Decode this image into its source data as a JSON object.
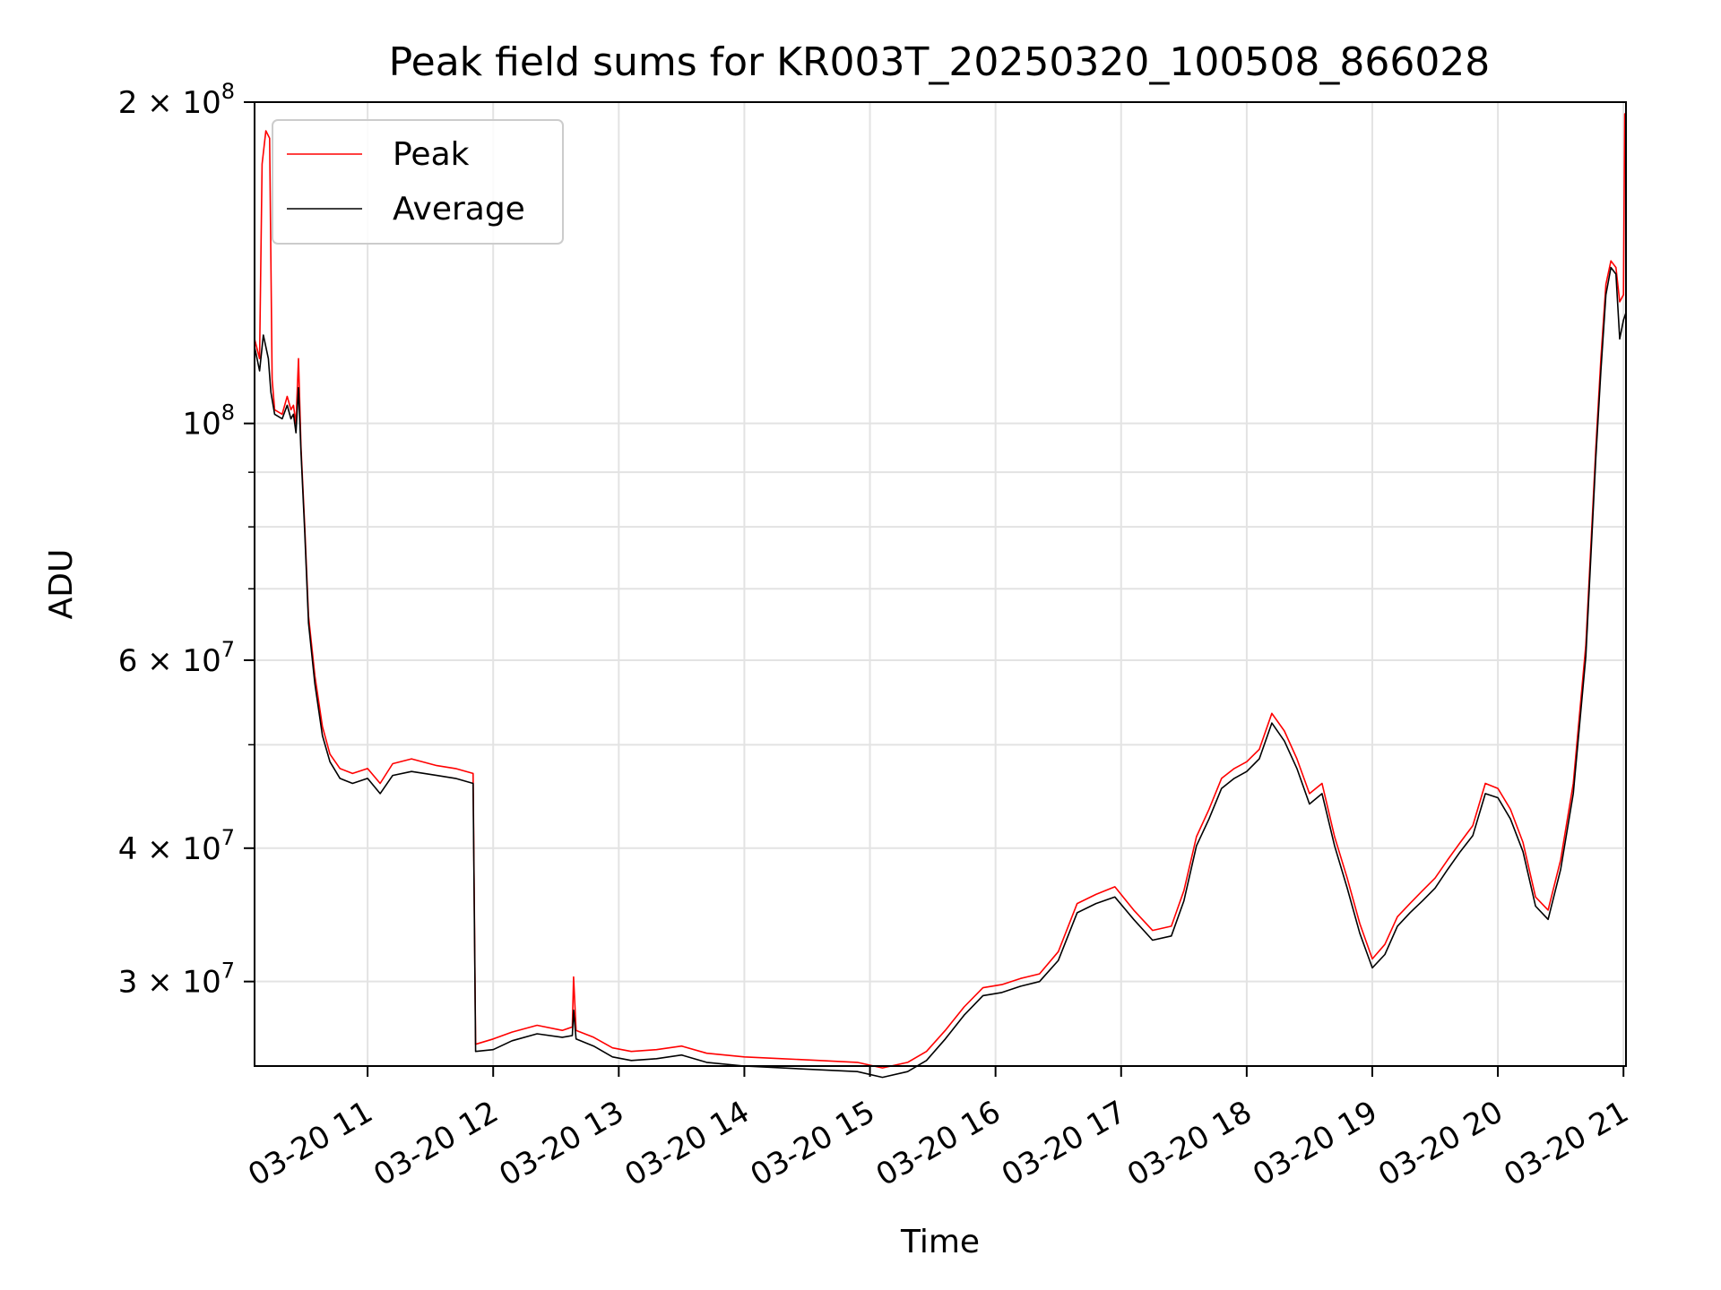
{
  "chart_data": {
    "type": "line",
    "title": "Peak field sums for KR003T_20250320_100508_866028",
    "xlabel": "Time",
    "ylabel": "ADU",
    "y_scale": "log",
    "xlim_hours": [
      10.1,
      21.02
    ],
    "ylim": [
      25000000,
      200000000
    ],
    "grid": true,
    "legend_location": "upper left",
    "x_ticks": [
      {
        "t": 11,
        "label": "03-20 11"
      },
      {
        "t": 12,
        "label": "03-20 12"
      },
      {
        "t": 13,
        "label": "03-20 13"
      },
      {
        "t": 14,
        "label": "03-20 14"
      },
      {
        "t": 15,
        "label": "03-20 15"
      },
      {
        "t": 16,
        "label": "03-20 16"
      },
      {
        "t": 17,
        "label": "03-20 17"
      },
      {
        "t": 18,
        "label": "03-20 18"
      },
      {
        "t": 19,
        "label": "03-20 19"
      },
      {
        "t": 20,
        "label": "03-20 20"
      },
      {
        "t": 21,
        "label": "03-20 21"
      }
    ],
    "y_ticks_major": [
      {
        "v": 30000000,
        "base": "3 × 10",
        "exp": "7"
      },
      {
        "v": 40000000,
        "base": "4 × 10",
        "exp": "7"
      },
      {
        "v": 60000000,
        "base": "6 × 10",
        "exp": "7"
      },
      {
        "v": 100000000,
        "base": "10",
        "exp": "8"
      },
      {
        "v": 200000000,
        "base": "2 × 10",
        "exp": "8"
      }
    ],
    "y_ticks_minor": [
      50000000,
      70000000,
      80000000,
      90000000
    ],
    "series": [
      {
        "name": "Peak",
        "color": "#ff0000",
        "points": [
          [
            10.1,
            120000000
          ],
          [
            10.14,
            115000000
          ],
          [
            10.16,
            175000000
          ],
          [
            10.19,
            188000000
          ],
          [
            10.22,
            185000000
          ],
          [
            10.24,
            110000000
          ],
          [
            10.26,
            103000000
          ],
          [
            10.32,
            102000000
          ],
          [
            10.36,
            106000000
          ],
          [
            10.39,
            103000000
          ],
          [
            10.41,
            104000000
          ],
          [
            10.43,
            100000000
          ],
          [
            10.45,
            115000000
          ],
          [
            10.47,
            95000000
          ],
          [
            10.5,
            80000000
          ],
          [
            10.53,
            66000000
          ],
          [
            10.58,
            58000000
          ],
          [
            10.64,
            52000000
          ],
          [
            10.7,
            49000000
          ],
          [
            10.78,
            47500000
          ],
          [
            10.88,
            47000000
          ],
          [
            11.0,
            47500000
          ],
          [
            11.1,
            46000000
          ],
          [
            11.2,
            48000000
          ],
          [
            11.35,
            48500000
          ],
          [
            11.55,
            47800000
          ],
          [
            11.7,
            47500000
          ],
          [
            11.84,
            47000000
          ],
          [
            11.86,
            26200000
          ],
          [
            12.0,
            26500000
          ],
          [
            12.15,
            26900000
          ],
          [
            12.35,
            27300000
          ],
          [
            12.55,
            27000000
          ],
          [
            12.63,
            27200000
          ],
          [
            12.64,
            30300000
          ],
          [
            12.66,
            27000000
          ],
          [
            12.8,
            26600000
          ],
          [
            12.95,
            26000000
          ],
          [
            13.1,
            25800000
          ],
          [
            13.3,
            25900000
          ],
          [
            13.5,
            26100000
          ],
          [
            13.7,
            25700000
          ],
          [
            14.0,
            25500000
          ],
          [
            14.3,
            25400000
          ],
          [
            14.6,
            25300000
          ],
          [
            14.9,
            25200000
          ],
          [
            15.1,
            24900000
          ],
          [
            15.3,
            25200000
          ],
          [
            15.45,
            25800000
          ],
          [
            15.6,
            27000000
          ],
          [
            15.75,
            28400000
          ],
          [
            15.9,
            29600000
          ],
          [
            16.05,
            29800000
          ],
          [
            16.2,
            30200000
          ],
          [
            16.35,
            30500000
          ],
          [
            16.5,
            32000000
          ],
          [
            16.65,
            35500000
          ],
          [
            16.8,
            36200000
          ],
          [
            16.95,
            36800000
          ],
          [
            17.1,
            35000000
          ],
          [
            17.25,
            33500000
          ],
          [
            17.4,
            33800000
          ],
          [
            17.5,
            36500000
          ],
          [
            17.6,
            41000000
          ],
          [
            17.7,
            43500000
          ],
          [
            17.8,
            46500000
          ],
          [
            17.9,
            47500000
          ],
          [
            18.0,
            48200000
          ],
          [
            18.1,
            49500000
          ],
          [
            18.2,
            53500000
          ],
          [
            18.3,
            51500000
          ],
          [
            18.4,
            48500000
          ],
          [
            18.5,
            45000000
          ],
          [
            18.6,
            46000000
          ],
          [
            18.7,
            41000000
          ],
          [
            18.8,
            37500000
          ],
          [
            18.9,
            34000000
          ],
          [
            19.0,
            31500000
          ],
          [
            19.1,
            32500000
          ],
          [
            19.2,
            34500000
          ],
          [
            19.3,
            35500000
          ],
          [
            19.4,
            36500000
          ],
          [
            19.5,
            37500000
          ],
          [
            19.6,
            39000000
          ],
          [
            19.7,
            40500000
          ],
          [
            19.8,
            42000000
          ],
          [
            19.9,
            46000000
          ],
          [
            20.0,
            45500000
          ],
          [
            20.1,
            43500000
          ],
          [
            20.2,
            40500000
          ],
          [
            20.3,
            36000000
          ],
          [
            20.4,
            35000000
          ],
          [
            20.5,
            39000000
          ],
          [
            20.6,
            46000000
          ],
          [
            20.7,
            62000000
          ],
          [
            20.78,
            95000000
          ],
          [
            20.82,
            115000000
          ],
          [
            20.86,
            135000000
          ],
          [
            20.9,
            142000000
          ],
          [
            20.94,
            140000000
          ],
          [
            20.97,
            130000000
          ],
          [
            21.0,
            132000000
          ],
          [
            21.01,
            195000000
          ],
          [
            21.02,
            185000000
          ]
        ]
      },
      {
        "name": "Average",
        "color": "#000000",
        "points": [
          [
            10.1,
            118000000
          ],
          [
            10.14,
            112000000
          ],
          [
            10.17,
            121000000
          ],
          [
            10.21,
            115000000
          ],
          [
            10.23,
            107000000
          ],
          [
            10.26,
            102000000
          ],
          [
            10.32,
            101000000
          ],
          [
            10.36,
            104000000
          ],
          [
            10.39,
            101000000
          ],
          [
            10.41,
            102000000
          ],
          [
            10.43,
            98000000
          ],
          [
            10.45,
            108000000
          ],
          [
            10.47,
            94000000
          ],
          [
            10.5,
            79000000
          ],
          [
            10.53,
            65000000
          ],
          [
            10.58,
            57000000
          ],
          [
            10.64,
            51000000
          ],
          [
            10.7,
            48200000
          ],
          [
            10.78,
            46500000
          ],
          [
            10.88,
            46000000
          ],
          [
            11.0,
            46500000
          ],
          [
            11.1,
            45000000
          ],
          [
            11.2,
            46800000
          ],
          [
            11.35,
            47200000
          ],
          [
            11.55,
            46800000
          ],
          [
            11.7,
            46500000
          ],
          [
            11.84,
            46000000
          ],
          [
            11.86,
            25800000
          ],
          [
            12.0,
            25900000
          ],
          [
            12.15,
            26400000
          ],
          [
            12.35,
            26800000
          ],
          [
            12.55,
            26600000
          ],
          [
            12.63,
            26700000
          ],
          [
            12.64,
            28200000
          ],
          [
            12.66,
            26500000
          ],
          [
            12.8,
            26100000
          ],
          [
            12.95,
            25500000
          ],
          [
            13.1,
            25300000
          ],
          [
            13.3,
            25400000
          ],
          [
            13.5,
            25600000
          ],
          [
            13.7,
            25200000
          ],
          [
            14.0,
            25000000
          ],
          [
            14.3,
            24900000
          ],
          [
            14.6,
            24800000
          ],
          [
            14.9,
            24700000
          ],
          [
            15.1,
            24400000
          ],
          [
            15.3,
            24700000
          ],
          [
            15.45,
            25300000
          ],
          [
            15.6,
            26500000
          ],
          [
            15.75,
            27900000
          ],
          [
            15.9,
            29100000
          ],
          [
            16.05,
            29300000
          ],
          [
            16.2,
            29700000
          ],
          [
            16.35,
            30000000
          ],
          [
            16.5,
            31400000
          ],
          [
            16.65,
            34800000
          ],
          [
            16.8,
            35500000
          ],
          [
            16.95,
            36000000
          ],
          [
            17.1,
            34300000
          ],
          [
            17.25,
            32800000
          ],
          [
            17.4,
            33100000
          ],
          [
            17.5,
            35700000
          ],
          [
            17.6,
            40200000
          ],
          [
            17.7,
            42600000
          ],
          [
            17.8,
            45500000
          ],
          [
            17.9,
            46500000
          ],
          [
            18.0,
            47200000
          ],
          [
            18.1,
            48500000
          ],
          [
            18.2,
            52400000
          ],
          [
            18.3,
            50400000
          ],
          [
            18.4,
            47500000
          ],
          [
            18.5,
            44000000
          ],
          [
            18.6,
            45000000
          ],
          [
            18.7,
            40200000
          ],
          [
            18.8,
            36700000
          ],
          [
            18.9,
            33300000
          ],
          [
            19.0,
            30900000
          ],
          [
            19.1,
            31800000
          ],
          [
            19.2,
            33800000
          ],
          [
            19.3,
            34800000
          ],
          [
            19.4,
            35700000
          ],
          [
            19.5,
            36700000
          ],
          [
            19.6,
            38200000
          ],
          [
            19.7,
            39700000
          ],
          [
            19.8,
            41100000
          ],
          [
            19.9,
            45000000
          ],
          [
            20.0,
            44600000
          ],
          [
            20.1,
            42600000
          ],
          [
            20.2,
            39700000
          ],
          [
            20.3,
            35300000
          ],
          [
            20.4,
            34300000
          ],
          [
            20.5,
            38200000
          ],
          [
            20.6,
            45000000
          ],
          [
            20.7,
            60500000
          ],
          [
            20.78,
            93000000
          ],
          [
            20.82,
            112000000
          ],
          [
            20.86,
            132000000
          ],
          [
            20.9,
            140000000
          ],
          [
            20.94,
            138000000
          ],
          [
            20.97,
            120000000
          ],
          [
            21.0,
            125000000
          ],
          [
            21.02,
            127000000
          ]
        ]
      }
    ]
  }
}
